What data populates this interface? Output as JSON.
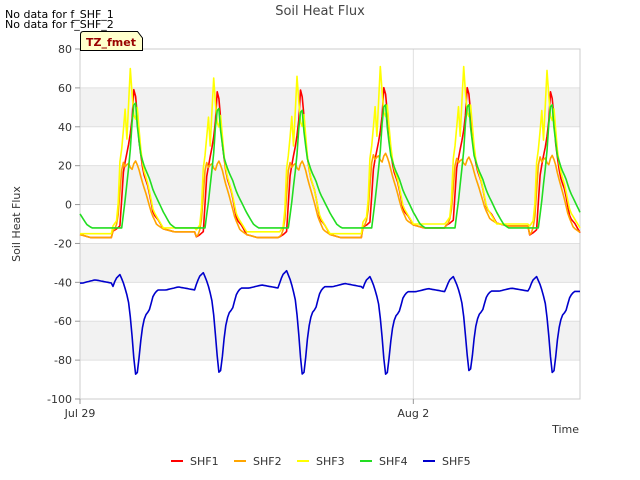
{
  "notices": [
    "No data for f_SHF_1",
    "No data for f_SHF_2"
  ],
  "site_badge": "TZ_fmet",
  "chart_data": {
    "type": "line",
    "title": "Soil Heat Flux",
    "xlabel": "Time",
    "ylabel": "Soil Heat Flux",
    "ylim": [
      -100,
      80
    ],
    "yticks": [
      -100,
      -80,
      -60,
      -40,
      -20,
      0,
      20,
      40,
      60,
      80
    ],
    "xlim": [
      "2023-07-29",
      "2023-08-04T00:00"
    ],
    "xticks": [
      {
        "date": "2023-07-29",
        "label": "Jul 29"
      },
      {
        "date": "2023-08-02",
        "label": "Aug 2"
      }
    ],
    "grid": true,
    "legend_position": "bottom",
    "time_start": "2023-07-29T00:00",
    "time_end": "2023-08-04T00:00",
    "series": [
      {
        "name": "SHF1",
        "color": "#ff0000",
        "min": [
          -17,
          -14,
          -17,
          -17,
          -12,
          -11,
          -16
        ],
        "max": [
          62,
          62,
          61,
          62,
          63,
          63,
          61
        ]
      },
      {
        "name": "SHF2",
        "color": "#ffa500",
        "min": [
          -17,
          -14,
          -17,
          -17,
          -12,
          -11,
          -16
        ],
        "max": [
          22,
          23,
          23,
          23,
          27,
          25,
          26
        ]
      },
      {
        "name": "SHF3",
        "color": "#ffff00",
        "min": [
          -15,
          -12,
          -14,
          -15,
          -10,
          -10,
          -12
        ],
        "max": [
          74,
          75,
          70,
          71,
          76,
          76,
          74
        ]
      },
      {
        "name": "SHF4",
        "color": "#22dd22",
        "min": [
          -12,
          -12,
          -12,
          -12,
          -12,
          -12,
          -12
        ],
        "max": [
          48,
          56,
          53,
          52,
          55,
          55,
          55
        ]
      },
      {
        "name": "SHF5",
        "color": "#0000cc",
        "min": [
          -88,
          -89,
          -88,
          -89,
          -89,
          -87,
          -88
        ],
        "max": [
          -32,
          -36,
          -35,
          -34,
          -37,
          -37,
          -37
        ]
      }
    ]
  }
}
